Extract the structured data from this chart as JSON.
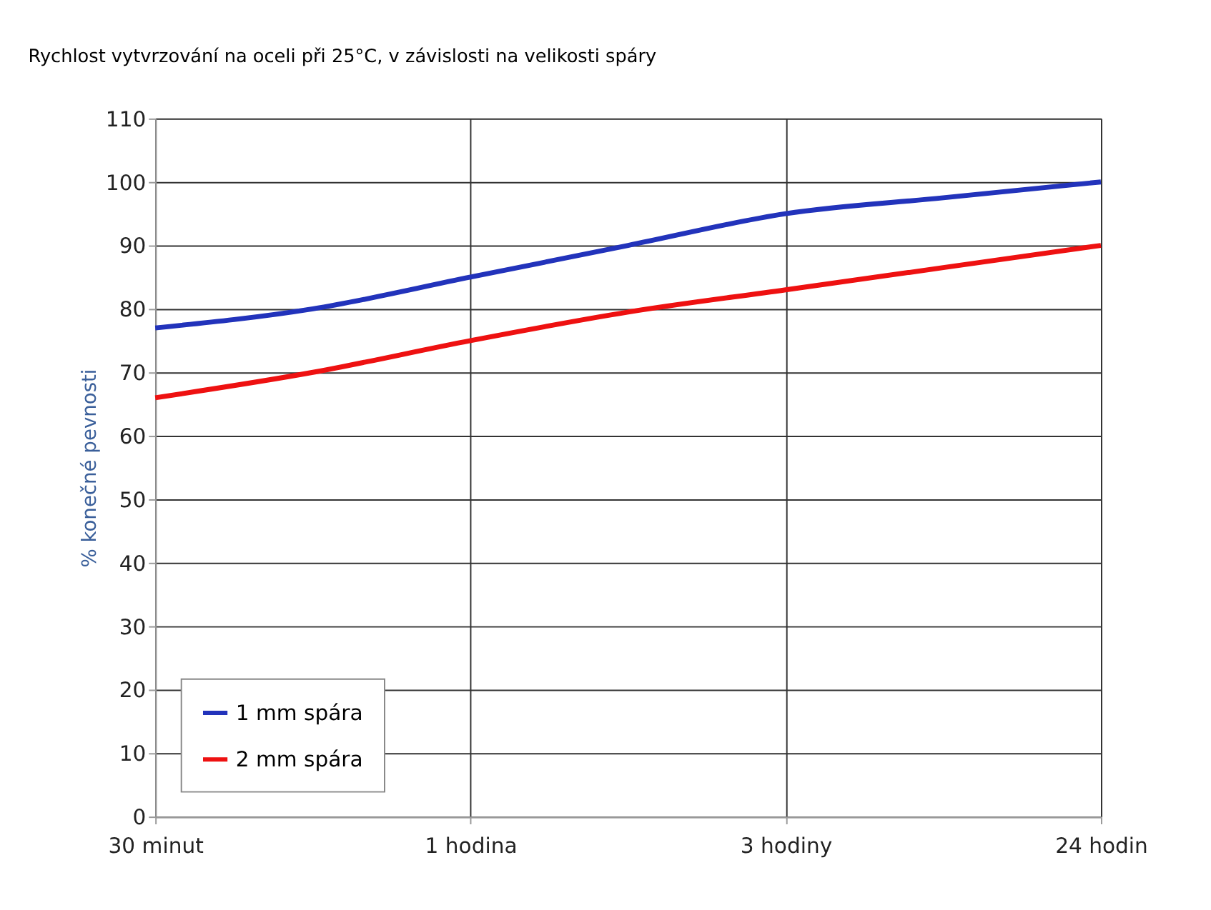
{
  "chart_data": {
    "type": "line",
    "title": "Rychlost vytvrzování na oceli při 25°C, v závislosti na velikosti spáry",
    "ylabel": "% konečné pevnosti",
    "categories": [
      "30 minut",
      null,
      "1 hodina",
      null,
      "3 hodiny",
      null,
      "24 hodin"
    ],
    "series": [
      {
        "name": "1 mm spára",
        "color": "#2233bb",
        "values": [
          77,
          80,
          85,
          90,
          95,
          97.5,
          100
        ]
      },
      {
        "name": "2 mm spára",
        "color": "#ee1111",
        "values": [
          66,
          70,
          75,
          79.5,
          83,
          86.5,
          90
        ]
      }
    ],
    "ylim": [
      0,
      110
    ],
    "yticks": [
      0,
      10,
      20,
      30,
      40,
      50,
      60,
      70,
      80,
      90,
      100,
      110
    ],
    "grid": true,
    "legend": "bottom left",
    "marker": "none",
    "line_style": "solid"
  }
}
